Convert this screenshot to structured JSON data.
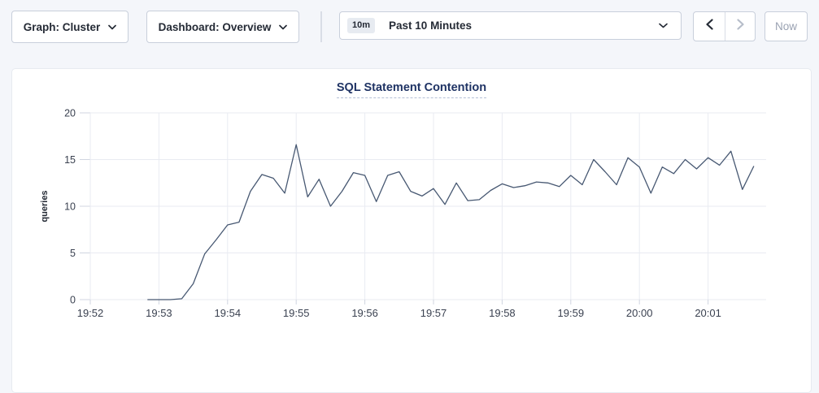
{
  "toolbar": {
    "graph_dropdown": {
      "label": "Graph: Cluster",
      "icon": "chevron-down-icon"
    },
    "dashboard_dropdown": {
      "label": "Dashboard: Overview",
      "icon": "chevron-down-icon"
    },
    "time_range": {
      "badge": "10m",
      "label": "Past 10 Minutes",
      "icon": "chevron-down-icon"
    },
    "nav": {
      "prev_icon": "chevron-left-icon",
      "next_icon": "chevron-right-icon",
      "next_disabled": true
    },
    "now_button": {
      "label": "Now",
      "disabled": true
    }
  },
  "colors": {
    "page_bg": "#f4f6fa",
    "card_bg": "#ffffff",
    "control_border": "#c8cfdb",
    "title_text": "#1f3364",
    "title_underline": "#b4bfd6",
    "gridline": "#e9ebf2",
    "tick": "#d0d5e0",
    "axis_text": "#3a4150",
    "line": "#475872",
    "disabled_text": "#9aa2b2"
  },
  "chart_data": {
    "type": "line",
    "title": "SQL Statement Contention",
    "xlabel": "",
    "ylabel": "queries",
    "ylim": [
      0,
      20
    ],
    "y_ticks": [
      0,
      5,
      10,
      15,
      20
    ],
    "x_ticks": [
      "19:52",
      "19:53",
      "19:54",
      "19:55",
      "19:56",
      "19:57",
      "19:58",
      "19:59",
      "20:00",
      "20:01"
    ],
    "grid": true,
    "legend": false,
    "series": [
      {
        "name": "queries",
        "color": "#475872",
        "points": [
          [
            "19:52:50",
            0
          ],
          [
            "19:53:00",
            0
          ],
          [
            "19:53:10",
            0
          ],
          [
            "19:53:20",
            0.1
          ],
          [
            "19:53:30",
            1.7
          ],
          [
            "19:53:40",
            4.9
          ],
          [
            "19:53:50",
            6.4
          ],
          [
            "19:54:00",
            8.0
          ],
          [
            "19:54:10",
            8.3
          ],
          [
            "19:54:20",
            11.6
          ],
          [
            "19:54:30",
            13.4
          ],
          [
            "19:54:40",
            13.0
          ],
          [
            "19:54:50",
            11.4
          ],
          [
            "19:55:00",
            16.6
          ],
          [
            "19:55:10",
            11.0
          ],
          [
            "19:55:20",
            12.9
          ],
          [
            "19:55:30",
            10.0
          ],
          [
            "19:55:40",
            11.6
          ],
          [
            "19:55:50",
            13.6
          ],
          [
            "19:56:00",
            13.3
          ],
          [
            "19:56:10",
            10.5
          ],
          [
            "19:56:20",
            13.3
          ],
          [
            "19:56:30",
            13.7
          ],
          [
            "19:56:40",
            11.6
          ],
          [
            "19:56:50",
            11.1
          ],
          [
            "19:57:00",
            11.9
          ],
          [
            "19:57:10",
            10.2
          ],
          [
            "19:57:20",
            12.5
          ],
          [
            "19:57:30",
            10.6
          ],
          [
            "19:57:40",
            10.7
          ],
          [
            "19:57:50",
            11.7
          ],
          [
            "19:58:00",
            12.4
          ],
          [
            "19:58:10",
            12.0
          ],
          [
            "19:58:20",
            12.2
          ],
          [
            "19:58:30",
            12.6
          ],
          [
            "19:58:40",
            12.5
          ],
          [
            "19:58:50",
            12.1
          ],
          [
            "19:59:00",
            13.3
          ],
          [
            "19:59:10",
            12.3
          ],
          [
            "19:59:20",
            15.0
          ],
          [
            "19:59:30",
            13.7
          ],
          [
            "19:59:40",
            12.3
          ],
          [
            "19:59:50",
            15.2
          ],
          [
            "20:00:00",
            14.2
          ],
          [
            "20:00:10",
            11.4
          ],
          [
            "20:00:20",
            14.2
          ],
          [
            "20:00:30",
            13.5
          ],
          [
            "20:00:40",
            15.0
          ],
          [
            "20:00:50",
            14.0
          ],
          [
            "20:01:00",
            15.2
          ],
          [
            "20:01:10",
            14.4
          ],
          [
            "20:01:20",
            15.9
          ],
          [
            "20:01:30",
            11.8
          ],
          [
            "20:01:40",
            14.3
          ]
        ]
      }
    ]
  }
}
